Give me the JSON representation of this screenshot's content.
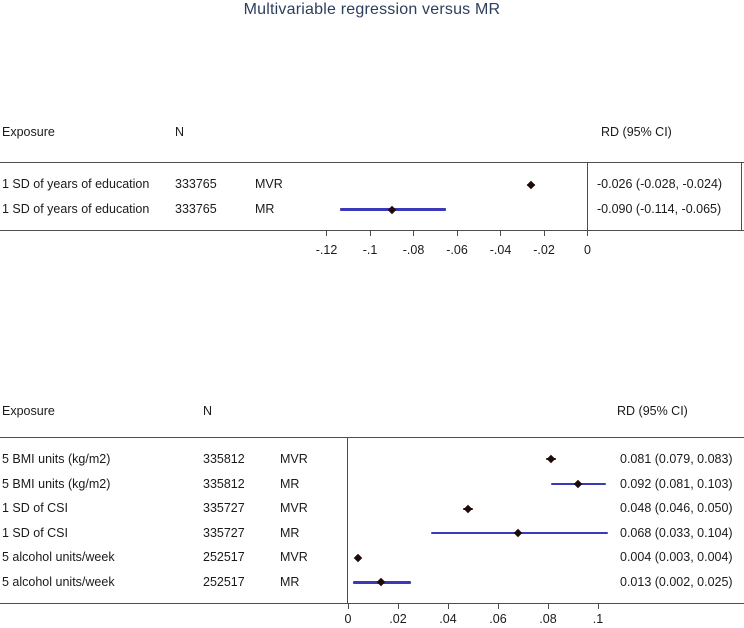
{
  "title": "Multivariable regression versus MR",
  "colors": {
    "title_text": "#2c3e5d",
    "mr_ci": "#3a3ab8",
    "mvr_ci": "#2b0f0f",
    "marker": "#1f0a0a",
    "rule": "#4d4d4d"
  },
  "chart_data": [
    {
      "type": "forest",
      "panel": "top",
      "headers": {
        "exposure": "Exposure",
        "n": "N",
        "rd": "RD (95% CI)"
      },
      "rows": [
        {
          "exposure": "1 SD of years of education",
          "n": "333765",
          "method": "MVR",
          "est": -0.026,
          "lo": -0.028,
          "hi": -0.024,
          "rd_text": "-0.026 (-0.028, -0.024)"
        },
        {
          "exposure": "1 SD of years of education",
          "n": "333765",
          "method": "MR",
          "est": -0.09,
          "lo": -0.114,
          "hi": -0.065,
          "rd_text": "-0.090 (-0.114, -0.065)"
        }
      ],
      "axis": {
        "ticks": [
          -0.12,
          -0.1,
          -0.08,
          -0.06,
          -0.04,
          -0.02,
          0
        ],
        "tick_labels": [
          "-.12",
          "-.1",
          "-.08",
          "-.06",
          "-.04",
          "-.02",
          "0"
        ],
        "zero_reference_line": true
      }
    },
    {
      "type": "forest",
      "panel": "bottom",
      "headers": {
        "exposure": "Exposure",
        "n": "N",
        "rd": "RD (95% CI)"
      },
      "rows": [
        {
          "exposure": "5 BMI units (kg/m2)",
          "n": "335812",
          "method": "MVR",
          "est": 0.081,
          "lo": 0.079,
          "hi": 0.083,
          "rd_text": "0.081 (0.079, 0.083)"
        },
        {
          "exposure": "5 BMI units (kg/m2)",
          "n": "335812",
          "method": "MR",
          "est": 0.092,
          "lo": 0.081,
          "hi": 0.103,
          "rd_text": "0.092 (0.081, 0.103)"
        },
        {
          "exposure": "1 SD of CSI",
          "n": "335727",
          "method": "MVR",
          "est": 0.048,
          "lo": 0.046,
          "hi": 0.05,
          "rd_text": "0.048 (0.046, 0.050)"
        },
        {
          "exposure": "1 SD of CSI",
          "n": "335727",
          "method": "MR",
          "est": 0.068,
          "lo": 0.033,
          "hi": 0.104,
          "rd_text": "0.068 (0.033, 0.104)"
        },
        {
          "exposure": "5 alcohol units/week",
          "n": "252517",
          "method": "MVR",
          "est": 0.004,
          "lo": 0.003,
          "hi": 0.004,
          "rd_text": "0.004 (0.003, 0.004)"
        },
        {
          "exposure": "5 alcohol units/week",
          "n": "252517",
          "method": "MR",
          "est": 0.013,
          "lo": 0.002,
          "hi": 0.025,
          "rd_text": "0.013 (0.002, 0.025)"
        }
      ],
      "axis": {
        "ticks": [
          0,
          0.02,
          0.04,
          0.06,
          0.08,
          0.1
        ],
        "tick_labels": [
          "0",
          ".02",
          ".04",
          ".06",
          ".08",
          ".1"
        ],
        "zero_reference_line": true
      }
    }
  ]
}
